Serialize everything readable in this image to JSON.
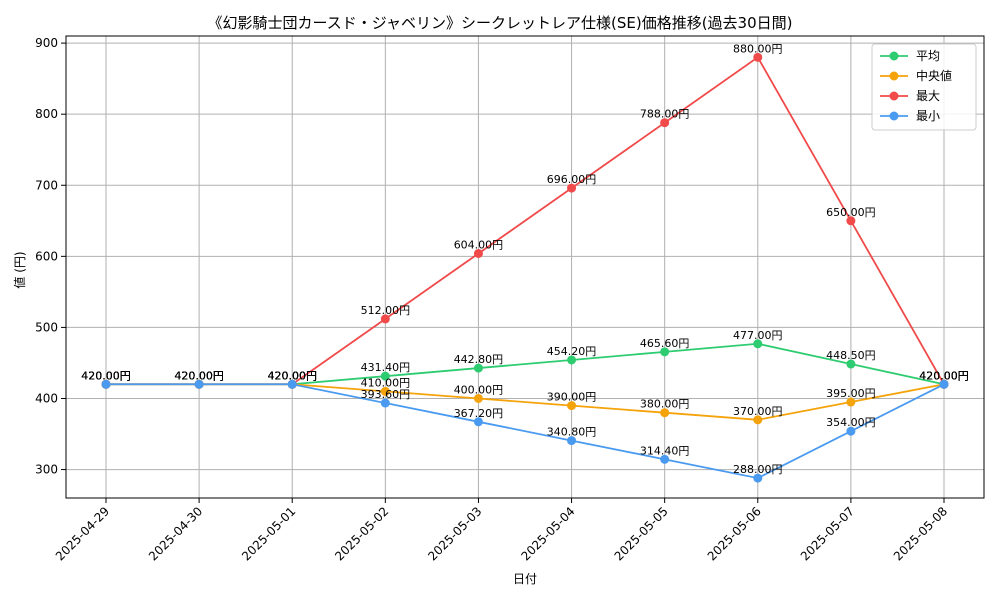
{
  "chart_data": {
    "type": "line",
    "title": "《幻影騎士団カースド・ジャベリン》シークレットレア仕様(SE)価格推移(過去30日間)",
    "xlabel": "日付",
    "ylabel": "値 (円)",
    "x": [
      "2025-04-29",
      "2025-04-30",
      "2025-05-01",
      "2025-05-02",
      "2025-05-03",
      "2025-05-04",
      "2025-05-05",
      "2025-05-06",
      "2025-05-07",
      "2025-05-08"
    ],
    "ylim": [
      260,
      910
    ],
    "yticks": [
      300,
      400,
      500,
      600,
      700,
      800,
      900
    ],
    "grid": true,
    "legend_position": "top-right",
    "series": [
      {
        "name": "平均",
        "color": "#2ecc71",
        "values": [
          420,
          420,
          420,
          431.4,
          442.8,
          454.2,
          465.6,
          477,
          448.5,
          420
        ],
        "labels": [
          "420.00円",
          "420.00円",
          "420.00円",
          "431.40円",
          "442.80円",
          "454.20円",
          "465.60円",
          "477.00円",
          "448.50円",
          "420.00円"
        ]
      },
      {
        "name": "中央値",
        "color": "#f5a30a",
        "values": [
          420,
          420,
          420,
          410,
          400,
          390,
          380,
          370,
          395,
          420
        ],
        "labels": [
          "420.00円",
          "420.00円",
          "420.00円",
          "410.00円",
          "400.00円",
          "390.00円",
          "380.00円",
          "370.00円",
          "395.00円",
          "420.00円"
        ]
      },
      {
        "name": "最大",
        "color": "#f04a4a",
        "values": [
          420,
          420,
          420,
          512,
          604,
          696,
          788,
          880,
          650,
          420
        ],
        "labels": [
          "420.00円",
          "420.00円",
          "420.00円",
          "512.00円",
          "604.00円",
          "696.00円",
          "788.00円",
          "880.00円",
          "650.00円",
          "420.00円"
        ]
      },
      {
        "name": "最小",
        "color": "#4a9bf0",
        "values": [
          420,
          420,
          420,
          393.6,
          367.2,
          340.8,
          314.4,
          288,
          354,
          420
        ],
        "labels": [
          "420.00円",
          "420.00円",
          "420.00円",
          "393.60円",
          "367.20円",
          "340.80円",
          "314.40円",
          "288.00円",
          "354.00円",
          "420.00円"
        ]
      }
    ]
  }
}
